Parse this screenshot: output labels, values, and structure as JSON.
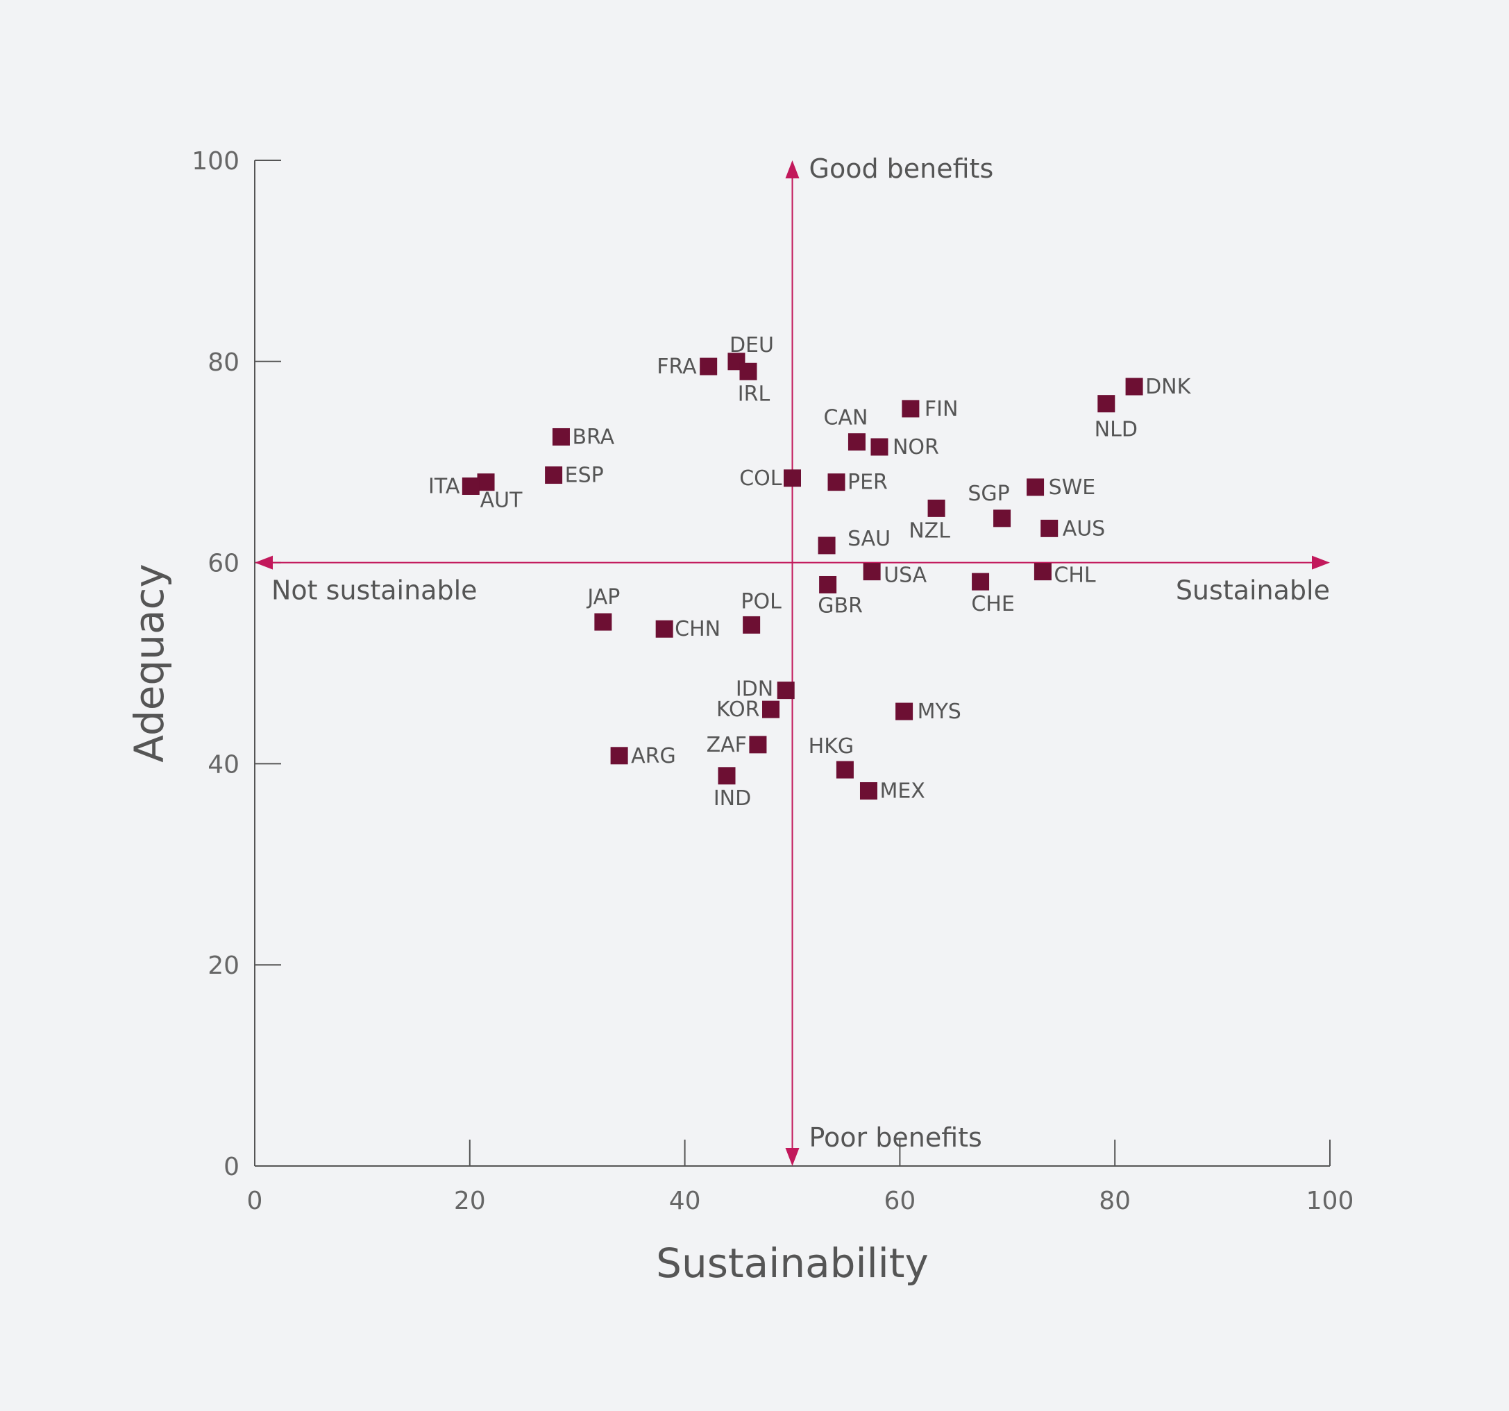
{
  "colors": {
    "background": "#f2f3f5",
    "axis": "#555555",
    "accent": "#c2185b",
    "marker": "#6d0f33",
    "text": "#555555"
  },
  "chart_data": {
    "type": "scatter",
    "xlabel": "Sustainability",
    "ylabel": "Adequacy",
    "xlim": [
      0,
      100
    ],
    "ylim": [
      0,
      100
    ],
    "xticks": [
      0,
      20,
      40,
      60,
      80,
      100
    ],
    "yticks": [
      0,
      20,
      40,
      60,
      80,
      100
    ],
    "grid": false,
    "reference_lines": {
      "x": 50,
      "y": 60
    },
    "annotations": {
      "top": "Good benefits",
      "bottom": "Poor benefits",
      "left": "Not sustainable",
      "right": "Sustainable"
    },
    "points": [
      {
        "label": "DEU",
        "x": 44.8,
        "y": 80.0
      },
      {
        "label": "FRA",
        "x": 42.2,
        "y": 79.5
      },
      {
        "label": "IRL",
        "x": 45.9,
        "y": 79.0
      },
      {
        "label": "DNK",
        "x": 81.8,
        "y": 77.5
      },
      {
        "label": "NLD",
        "x": 79.2,
        "y": 75.8
      },
      {
        "label": "FIN",
        "x": 61.0,
        "y": 75.3
      },
      {
        "label": "BRA",
        "x": 28.5,
        "y": 72.5
      },
      {
        "label": "CAN",
        "x": 56.0,
        "y": 72.0
      },
      {
        "label": "NOR",
        "x": 58.1,
        "y": 71.5
      },
      {
        "label": "ESP",
        "x": 27.8,
        "y": 68.7
      },
      {
        "label": "COL",
        "x": 50.0,
        "y": 68.4
      },
      {
        "label": "AUT",
        "x": 21.5,
        "y": 68.0
      },
      {
        "label": "PER",
        "x": 54.1,
        "y": 68.0
      },
      {
        "label": "ITA",
        "x": 20.1,
        "y": 67.6
      },
      {
        "label": "SWE",
        "x": 72.6,
        "y": 67.5
      },
      {
        "label": "NZL",
        "x": 63.4,
        "y": 65.4
      },
      {
        "label": "SGP",
        "x": 69.5,
        "y": 64.4
      },
      {
        "label": "AUS",
        "x": 73.9,
        "y": 63.4
      },
      {
        "label": "SAU",
        "x": 53.2,
        "y": 61.7
      },
      {
        "label": "USA",
        "x": 57.4,
        "y": 59.1
      },
      {
        "label": "CHL",
        "x": 73.3,
        "y": 59.1
      },
      {
        "label": "CHE",
        "x": 67.5,
        "y": 58.1
      },
      {
        "label": "GBR",
        "x": 53.3,
        "y": 57.8
      },
      {
        "label": "JAP",
        "x": 32.4,
        "y": 54.1
      },
      {
        "label": "POL",
        "x": 46.2,
        "y": 53.8
      },
      {
        "label": "CHN",
        "x": 38.1,
        "y": 53.4
      },
      {
        "label": "IDN",
        "x": 49.4,
        "y": 47.3
      },
      {
        "label": "KOR",
        "x": 48.0,
        "y": 45.4
      },
      {
        "label": "MYS",
        "x": 60.4,
        "y": 45.2
      },
      {
        "label": "ZAF",
        "x": 46.8,
        "y": 41.9
      },
      {
        "label": "ARG",
        "x": 33.9,
        "y": 40.8
      },
      {
        "label": "HKG",
        "x": 54.9,
        "y": 39.4
      },
      {
        "label": "IND",
        "x": 43.9,
        "y": 38.8
      },
      {
        "label": "MEX",
        "x": 57.1,
        "y": 37.3
      }
    ]
  }
}
